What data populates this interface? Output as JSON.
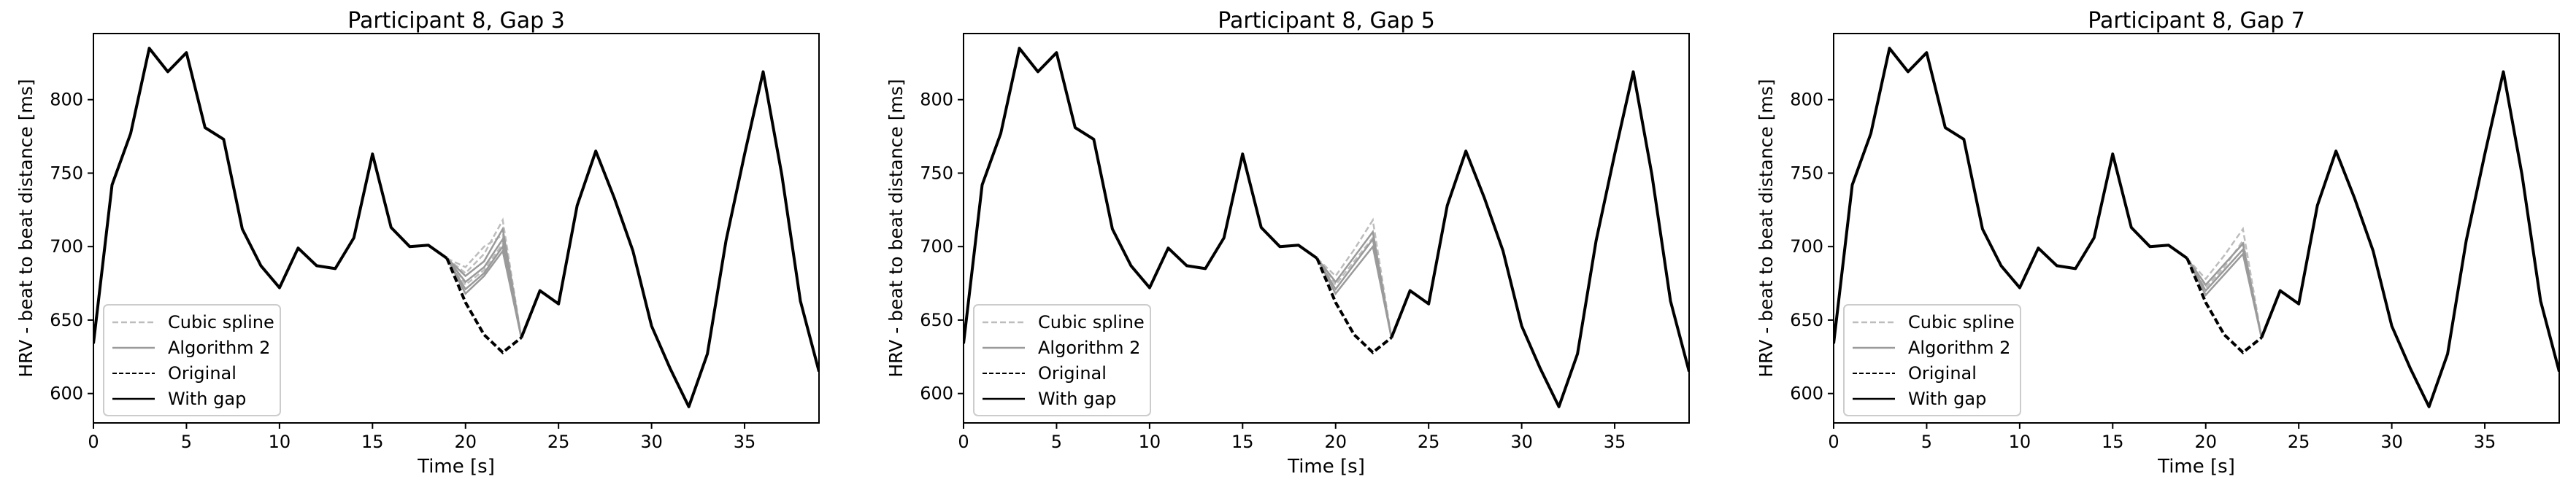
{
  "chart_data": [
    {
      "type": "line",
      "title": "Participant 8, Gap 3",
      "xlabel": "Time [s]",
      "ylabel": "HRV - beat to beat distance [ms]",
      "xlim": [
        0,
        39
      ],
      "ylim": [
        580,
        845
      ],
      "xticks": [
        0,
        5,
        10,
        15,
        20,
        25,
        30,
        35
      ],
      "yticks": [
        600,
        650,
        700,
        750,
        800
      ],
      "legend_position": "lower-left",
      "with_gap": {
        "x": [
          0,
          1,
          2,
          3,
          4,
          5,
          6,
          7,
          8,
          9,
          10,
          11,
          12,
          13,
          14,
          15,
          16,
          17,
          18,
          19,
          20,
          21,
          22,
          23,
          24,
          25,
          26,
          27,
          28,
          29,
          30,
          31,
          32,
          33,
          34,
          35,
          36,
          37,
          38,
          39
        ],
        "y": [
          634,
          742,
          777,
          835,
          819,
          832,
          781,
          773,
          712,
          687,
          672,
          699,
          687,
          685,
          706,
          763,
          713,
          700,
          701,
          692,
          null,
          null,
          null,
          638,
          670,
          661,
          728,
          765,
          733,
          697,
          646,
          617,
          591,
          627,
          704,
          763,
          819,
          749,
          663,
          615
        ]
      },
      "original": {
        "x": [
          19,
          20,
          21,
          22,
          23
        ],
        "y": [
          692,
          662,
          640,
          628,
          638
        ]
      },
      "algorithm2": [
        {
          "x": [
            19,
            20,
            21,
            22,
            23
          ],
          "y": [
            692,
            680,
            690,
            712,
            638
          ]
        },
        {
          "x": [
            19,
            20,
            21,
            22,
            23
          ],
          "y": [
            692,
            676,
            686,
            705,
            638
          ]
        },
        {
          "x": [
            19,
            20,
            21,
            22,
            23
          ],
          "y": [
            692,
            671,
            682,
            700,
            638
          ]
        },
        {
          "x": [
            19,
            20,
            21,
            22,
            23
          ],
          "y": [
            692,
            668,
            680,
            697,
            638
          ]
        }
      ],
      "cubic_spline": [
        {
          "x": [
            19,
            20,
            21,
            22,
            23
          ],
          "y": [
            692,
            682,
            695,
            718,
            638
          ]
        },
        {
          "x": [
            19,
            20,
            21,
            22,
            23
          ],
          "y": [
            692,
            686,
            700,
            708,
            638
          ]
        },
        {
          "x": [
            19,
            20,
            21,
            22,
            23
          ],
          "y": [
            692,
            674,
            684,
            702,
            638
          ]
        }
      ],
      "legend": [
        "Cubic spline",
        "Algorithm 2",
        "Original",
        "With gap"
      ]
    },
    {
      "type": "line",
      "title": "Participant 8, Gap 5",
      "xlabel": "Time [s]",
      "ylabel": "HRV - beat to beat distance [ms]",
      "xlim": [
        0,
        39
      ],
      "ylim": [
        580,
        845
      ],
      "xticks": [
        0,
        5,
        10,
        15,
        20,
        25,
        30,
        35
      ],
      "yticks": [
        600,
        650,
        700,
        750,
        800
      ],
      "legend_position": "lower-left",
      "with_gap": {
        "x": [
          0,
          1,
          2,
          3,
          4,
          5,
          6,
          7,
          8,
          9,
          10,
          11,
          12,
          13,
          14,
          15,
          16,
          17,
          18,
          19,
          20,
          21,
          22,
          23,
          24,
          25,
          26,
          27,
          28,
          29,
          30,
          31,
          32,
          33,
          34,
          35,
          36,
          37,
          38,
          39
        ],
        "y": [
          634,
          742,
          777,
          835,
          819,
          832,
          781,
          773,
          712,
          687,
          672,
          699,
          687,
          685,
          706,
          763,
          713,
          700,
          701,
          692,
          null,
          null,
          null,
          638,
          670,
          661,
          728,
          765,
          733,
          697,
          646,
          617,
          591,
          627,
          704,
          763,
          819,
          749,
          663,
          615
        ]
      },
      "original": {
        "x": [
          19,
          20,
          21,
          22,
          23
        ],
        "y": [
          692,
          662,
          640,
          628,
          638
        ]
      },
      "algorithm2": [
        {
          "x": [
            19,
            20,
            21,
            22,
            23
          ],
          "y": [
            692,
            676,
            693,
            710,
            638
          ]
        },
        {
          "x": [
            19,
            20,
            21,
            22,
            23
          ],
          "y": [
            692,
            671,
            688,
            705,
            638
          ]
        },
        {
          "x": [
            19,
            20,
            21,
            22,
            23
          ],
          "y": [
            692,
            668,
            684,
            700,
            638
          ]
        }
      ],
      "cubic_spline": [
        {
          "x": [
            19,
            20,
            21,
            22,
            23
          ],
          "y": [
            692,
            680,
            698,
            718,
            638
          ]
        },
        {
          "x": [
            19,
            20,
            21,
            22,
            23
          ],
          "y": [
            692,
            674,
            690,
            706,
            638
          ]
        }
      ],
      "legend": [
        "Cubic spline",
        "Algorithm 2",
        "Original",
        "With gap"
      ]
    },
    {
      "type": "line",
      "title": "Participant 8, Gap 7",
      "xlabel": "Time [s]",
      "ylabel": "HRV - beat to beat distance [ms]",
      "xlim": [
        0,
        39
      ],
      "ylim": [
        580,
        845
      ],
      "xticks": [
        0,
        5,
        10,
        15,
        20,
        25,
        30,
        35
      ],
      "yticks": [
        600,
        650,
        700,
        750,
        800
      ],
      "legend_position": "lower-left",
      "with_gap": {
        "x": [
          0,
          1,
          2,
          3,
          4,
          5,
          6,
          7,
          8,
          9,
          10,
          11,
          12,
          13,
          14,
          15,
          16,
          17,
          18,
          19,
          20,
          21,
          22,
          23,
          24,
          25,
          26,
          27,
          28,
          29,
          30,
          31,
          32,
          33,
          34,
          35,
          36,
          37,
          38,
          39
        ],
        "y": [
          634,
          742,
          777,
          835,
          819,
          832,
          781,
          773,
          712,
          687,
          672,
          699,
          687,
          685,
          706,
          763,
          713,
          700,
          701,
          692,
          null,
          null,
          null,
          638,
          670,
          661,
          728,
          765,
          733,
          697,
          646,
          617,
          591,
          627,
          704,
          763,
          819,
          749,
          663,
          615
        ]
      },
      "original": {
        "x": [
          19,
          20,
          21,
          22,
          23
        ],
        "y": [
          692,
          662,
          640,
          628,
          638
        ]
      },
      "algorithm2": [
        {
          "x": [
            19,
            20,
            21,
            22,
            23
          ],
          "y": [
            692,
            674,
            688,
            702,
            638
          ]
        },
        {
          "x": [
            19,
            20,
            21,
            22,
            23
          ],
          "y": [
            692,
            670,
            684,
            698,
            638
          ]
        },
        {
          "x": [
            19,
            20,
            21,
            22,
            23
          ],
          "y": [
            692,
            667,
            681,
            695,
            638
          ]
        }
      ],
      "cubic_spline": [
        {
          "x": [
            19,
            20,
            21,
            22,
            23
          ],
          "y": [
            692,
            678,
            694,
            712,
            638
          ]
        },
        {
          "x": [
            19,
            20,
            21,
            22,
            23
          ],
          "y": [
            692,
            672,
            686,
            704,
            638
          ]
        }
      ],
      "legend": [
        "Cubic spline",
        "Algorithm 2",
        "Original",
        "With gap"
      ]
    }
  ]
}
